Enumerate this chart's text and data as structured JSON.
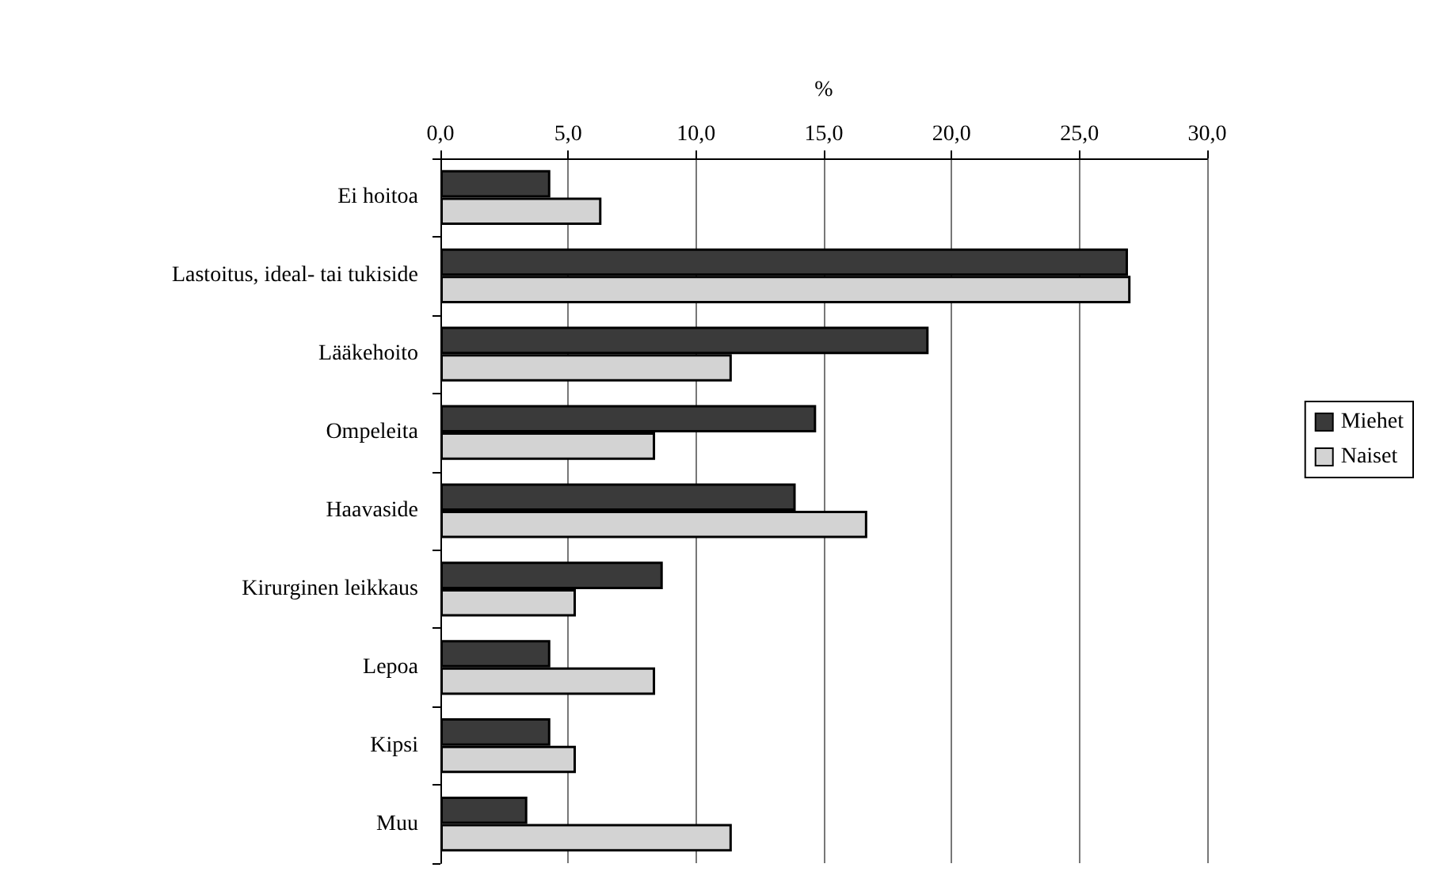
{
  "chart_data": {
    "type": "bar",
    "orientation": "horizontal",
    "xlabel": "%",
    "categories": [
      "Ei hoitoa",
      "Lastoitus, ideal- tai tukiside",
      "Lääkehoito",
      "Ompeleita",
      "Haavaside",
      "Kirurginen leikkaus",
      "Lepoa",
      "Kipsi",
      "Muu"
    ],
    "series": [
      {
        "name": "Miehet",
        "color": "#3a3a3a",
        "values": [
          4.3,
          26.9,
          19.1,
          14.7,
          13.9,
          8.7,
          4.3,
          4.3,
          3.4
        ]
      },
      {
        "name": "Naiset",
        "color": "#d3d3d3",
        "values": [
          6.3,
          27.0,
          11.4,
          8.4,
          16.7,
          5.3,
          8.4,
          5.3,
          11.4
        ]
      }
    ],
    "xlim": [
      0,
      30
    ],
    "xticks": [
      {
        "value": 0,
        "label": "0,0"
      },
      {
        "value": 5,
        "label": "5,0"
      },
      {
        "value": 10,
        "label": "10,0"
      },
      {
        "value": 15,
        "label": "15,0"
      },
      {
        "value": 20,
        "label": "20,0"
      },
      {
        "value": 25,
        "label": "25,0"
      },
      {
        "value": 30,
        "label": "30,0"
      }
    ],
    "grid": "x",
    "legend": "right"
  }
}
